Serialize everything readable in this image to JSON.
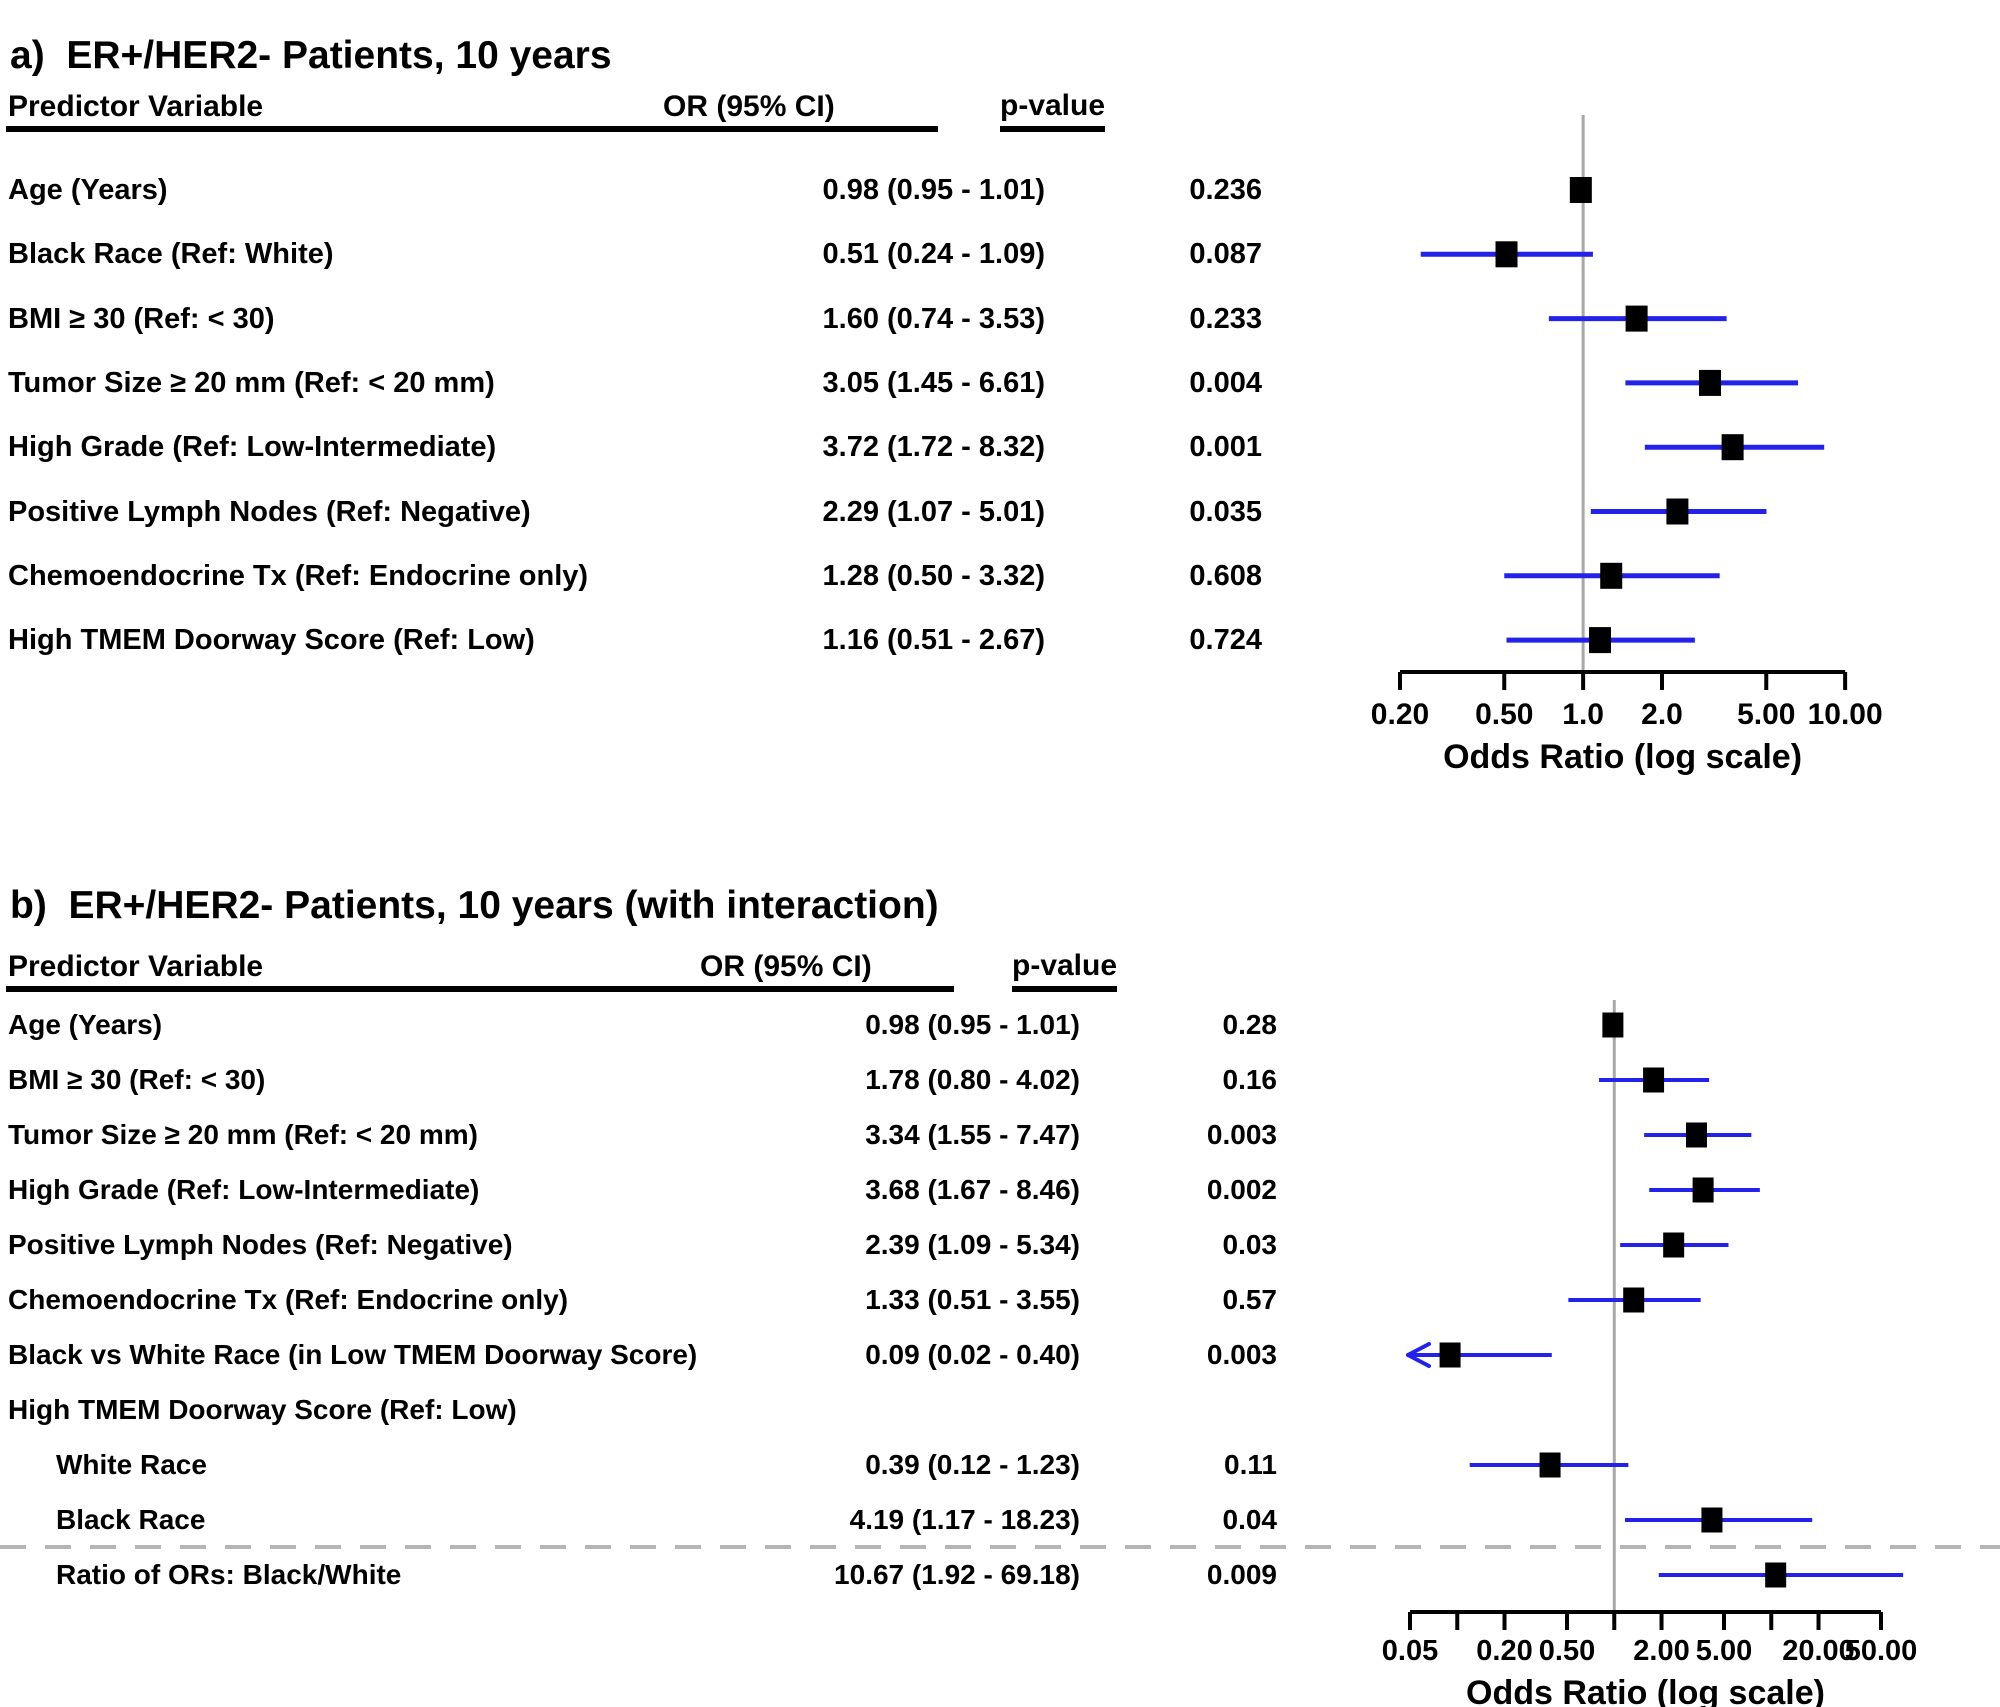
{
  "figure": {
    "background": "#ffffff",
    "colors": {
      "ci_line": "#2222e8",
      "marker": "#000000",
      "ref_line": "#a8a8a8",
      "dashed_divider": "#b5b5b5",
      "axis": "#000000",
      "text": "#000000"
    }
  },
  "chart_data": [
    {
      "type": "forest",
      "panel_label": "a",
      "title": "a)  ER+/HER2- Patients, 10 years",
      "header": {
        "predictor": "Predictor Variable",
        "or_ci": "OR (95% CI)",
        "p": "p-value"
      },
      "xlabel": "Odds Ratio (log scale)",
      "x_scale": "log",
      "xlim": [
        0.2,
        10
      ],
      "ref_line": 1.0,
      "legend": "none",
      "ticks": [
        {
          "v": 0.2,
          "label": "0.20"
        },
        {
          "v": 0.5,
          "label": "0.50"
        },
        {
          "v": 1,
          "label": "1.0"
        },
        {
          "v": 2,
          "label": "2.0"
        },
        {
          "v": 5,
          "label": "5.00"
        },
        {
          "v": 10,
          "label": "10.00"
        }
      ],
      "rows": [
        {
          "label": "Age (Years)",
          "or_ci": "0.98 (0.95 - 1.01)",
          "p": "0.236",
          "or": 0.98,
          "lo": 0.95,
          "hi": 1.01
        },
        {
          "label": "Black Race (Ref: White)",
          "or_ci": "0.51 (0.24 - 1.09)",
          "p": "0.087",
          "or": 0.51,
          "lo": 0.24,
          "hi": 1.09
        },
        {
          "label": "BMI ≥ 30 (Ref: < 30)",
          "or_ci": "1.60 (0.74 - 3.53)",
          "p": "0.233",
          "or": 1.6,
          "lo": 0.74,
          "hi": 3.53
        },
        {
          "label": "Tumor Size ≥ 20 mm (Ref: < 20 mm)",
          "or_ci": "3.05 (1.45 - 6.61)",
          "p": "0.004",
          "or": 3.05,
          "lo": 1.45,
          "hi": 6.61
        },
        {
          "label": "High Grade (Ref: Low-Intermediate)",
          "or_ci": "3.72 (1.72 - 8.32)",
          "p": "0.001",
          "or": 3.72,
          "lo": 1.72,
          "hi": 8.32
        },
        {
          "label": "Positive Lymph Nodes (Ref: Negative)",
          "or_ci": "2.29 (1.07 - 5.01)",
          "p": "0.035",
          "or": 2.29,
          "lo": 1.07,
          "hi": 5.01
        },
        {
          "label": "Chemoendocrine Tx (Ref: Endocrine only)",
          "or_ci": "1.28 (0.50 - 3.32)",
          "p": "0.608",
          "or": 1.28,
          "lo": 0.5,
          "hi": 3.32
        },
        {
          "label": "High TMEM Doorway Score (Ref: Low)",
          "or_ci": "1.16 (0.51 - 2.67)",
          "p": "0.724",
          "or": 1.16,
          "lo": 0.51,
          "hi": 2.67
        }
      ]
    },
    {
      "type": "forest",
      "panel_label": "b",
      "title": "b)  ER+/HER2- Patients, 10 years (with interaction)",
      "header": {
        "predictor": "Predictor Variable",
        "or_ci": "OR (95% CI)",
        "p": "p-value"
      },
      "xlabel": "Odds Ratio (log scale)",
      "x_scale": "log",
      "xlim": [
        0.05,
        50
      ],
      "ref_line": 1.0,
      "legend": "none",
      "ticks": [
        {
          "v": 0.05,
          "label": "0.05"
        },
        {
          "v": 0.1,
          "label": ""
        },
        {
          "v": 0.2,
          "label": "0.20"
        },
        {
          "v": 0.5,
          "label": "0.50"
        },
        {
          "v": 1,
          "label": ""
        },
        {
          "v": 2,
          "label": "2.00"
        },
        {
          "v": 5,
          "label": "5.00"
        },
        {
          "v": 10,
          "label": ""
        },
        {
          "v": 20,
          "label": "20.00"
        },
        {
          "v": 50,
          "label": "50.00"
        }
      ],
      "rows": [
        {
          "label": "Age (Years)",
          "or_ci": "0.98 (0.95 - 1.01)",
          "p": "0.28",
          "or": 0.98,
          "lo": 0.95,
          "hi": 1.01
        },
        {
          "label": "BMI ≥ 30 (Ref: < 30)",
          "or_ci": "1.78 (0.80 - 4.02)",
          "p": "0.16",
          "or": 1.78,
          "lo": 0.8,
          "hi": 4.02
        },
        {
          "label": "Tumor Size ≥ 20 mm (Ref: < 20 mm)",
          "or_ci": "3.34 (1.55 - 7.47)",
          "p": "0.003",
          "or": 3.34,
          "lo": 1.55,
          "hi": 7.47
        },
        {
          "label": "High Grade (Ref: Low-Intermediate)",
          "or_ci": "3.68 (1.67 - 8.46)",
          "p": "0.002",
          "or": 3.68,
          "lo": 1.67,
          "hi": 8.46
        },
        {
          "label": "Positive Lymph Nodes (Ref: Negative)",
          "or_ci": "2.39 (1.09 - 5.34)",
          "p": "0.03",
          "or": 2.39,
          "lo": 1.09,
          "hi": 5.34
        },
        {
          "label": "Chemoendocrine Tx (Ref: Endocrine only)",
          "or_ci": "1.33 (0.51 - 3.55)",
          "p": "0.57",
          "or": 1.33,
          "lo": 0.51,
          "hi": 3.55
        },
        {
          "label": "Black vs White Race (in Low TMEM Doorway Score)",
          "or_ci": "0.09 (0.02 - 0.40)",
          "p": "0.003",
          "or": 0.09,
          "lo": 0.02,
          "hi": 0.4,
          "clamp_low_arrow": true
        },
        {
          "label": "High TMEM Doorway Score (Ref: Low)",
          "or_ci": "",
          "p": "",
          "group_header": true
        },
        {
          "label": "White Race",
          "or_ci": "0.39 (0.12 - 1.23)",
          "p": "0.11",
          "or": 0.39,
          "lo": 0.12,
          "hi": 1.23,
          "indent": true
        },
        {
          "label": "Black Race",
          "or_ci": "4.19 (1.17 - 18.23)",
          "p": "0.04",
          "or": 4.19,
          "lo": 1.17,
          "hi": 18.23,
          "indent": true
        },
        {
          "label": "Ratio of ORs: Black/White",
          "or_ci": "10.67 (1.92 - 69.18)",
          "p": "0.009",
          "or": 10.67,
          "lo": 1.92,
          "hi": 69.18,
          "indent": true,
          "divider_above": true
        }
      ]
    }
  ]
}
